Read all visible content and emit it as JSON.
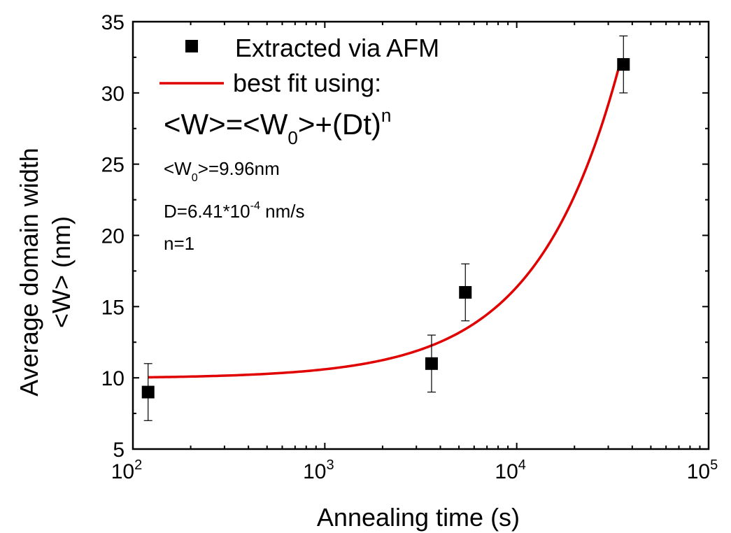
{
  "chart_data": {
    "type": "scatter",
    "xlabel": "Annealing time (s)",
    "ylabel_line1": "Average domain width",
    "ylabel_line2": "<W> (nm)",
    "x_scale": "log",
    "xlim": [
      100,
      100000
    ],
    "ylim": [
      5,
      35
    ],
    "x_ticks": [
      100,
      1000,
      10000,
      100000
    ],
    "x_tick_labels": [
      {
        "base": "10",
        "exp": "2"
      },
      {
        "base": "10",
        "exp": "3"
      },
      {
        "base": "10",
        "exp": "4"
      },
      {
        "base": "10",
        "exp": "5"
      }
    ],
    "y_ticks": [
      5,
      10,
      15,
      20,
      25,
      30,
      35
    ],
    "y_minor_step": 2.5,
    "grid": false,
    "legend_position": "top-left",
    "series": [
      {
        "name": "Extracted via AFM",
        "kind": "points",
        "marker": "square",
        "color": "#000000",
        "x": [
          120,
          3600,
          5400,
          36000
        ],
        "y": [
          9,
          11,
          16,
          32
        ],
        "y_err": [
          2,
          2,
          2,
          2
        ]
      },
      {
        "name": "best fit using:",
        "kind": "line",
        "color": "#e00000",
        "equation": "W = W0 + D*t",
        "W0": 9.96,
        "D": 0.000641,
        "x_range": [
          120,
          35000
        ]
      }
    ],
    "annotations": {
      "formula": {
        "a": "<W>=<W",
        "sub": "0",
        "b": ">+(Dt)",
        "sup": "n"
      },
      "w0": {
        "a": "<W",
        "sub": "0",
        "b": ">=9.96nm"
      },
      "d": {
        "a": "D=6.41*10",
        "sup": "-4",
        "b": " nm/s"
      },
      "n": "n=1"
    }
  }
}
